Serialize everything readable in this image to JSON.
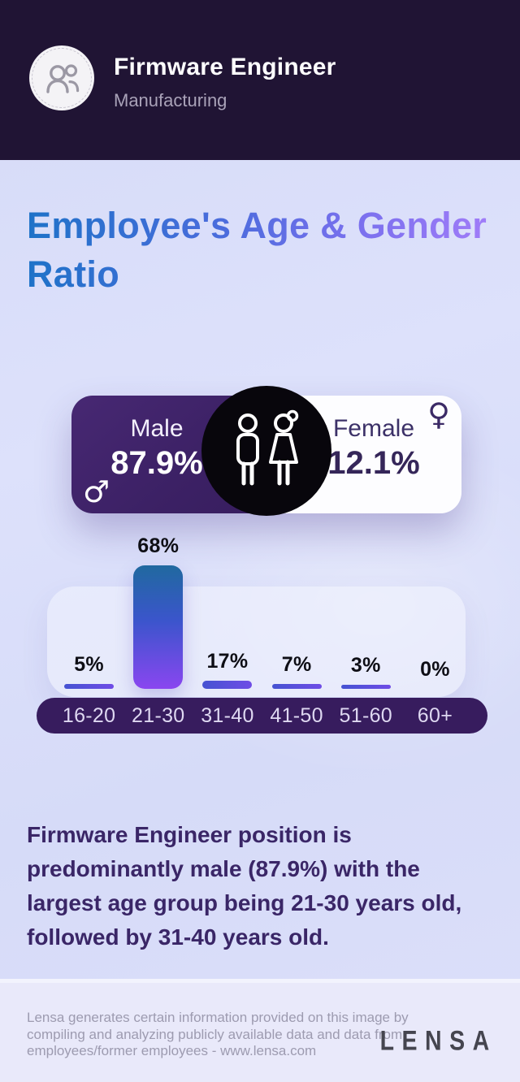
{
  "header": {
    "title": "Firmware Engineer",
    "subtitle": "Manufacturing",
    "avatar_icon": "people-icon"
  },
  "title_lines": [
    "Employee's Age & Gender",
    "Ratio"
  ],
  "chart_data": [
    {
      "type": "bar",
      "title": "Employee's Age & Gender Ratio",
      "categories": [
        "16-20",
        "21-30",
        "31-40",
        "41-50",
        "51-60",
        "60+"
      ],
      "values": [
        5,
        68,
        17,
        7,
        3,
        0
      ],
      "value_labels": [
        "5%",
        "68%",
        "17%",
        "7%",
        "3%",
        "0%"
      ],
      "unit": "%",
      "ylim": [
        0,
        100
      ],
      "grid": false,
      "legend": "none",
      "bar_gradient": [
        "#20699f",
        "#3b55cc",
        "#8a46f0"
      ]
    },
    {
      "type": "pie",
      "title": "Gender Ratio",
      "slices": [
        {
          "label": "Male",
          "value": 87.9,
          "text": "87.9%"
        },
        {
          "label": "Female",
          "value": 12.1,
          "text": "12.1%"
        }
      ],
      "unit": "%"
    }
  ],
  "gender_icons": {
    "male_symbol": "♂",
    "female_symbol": "♀"
  },
  "summary_lines": [
    "Firmware Engineer position is",
    "predominantly male (87.9%) with the",
    "largest age group being 21-30 years old,",
    "followed by 31-40 years old."
  ],
  "footer": {
    "disclaimer_lines": [
      "Lensa generates certain information provided on this image by",
      "compiling and analyzing publicly available data and data from",
      "employees/former employees - www.lensa.com"
    ],
    "logo": "LENSA"
  },
  "colors": {
    "header_bg": "#201434",
    "page_bg": "#d9ddf8",
    "heading_gradient_start": "#1e72c8",
    "heading_gradient_end": "#a07cf8",
    "male_panel": "#3e2167",
    "female_panel": "#fdfdff",
    "center_circle": "#08060c",
    "axis_pill": "#371c5e",
    "bar_blue": "#3b55cc",
    "bar_purple": "#8a46f0",
    "summary_text": "#3a2667",
    "footer_bg": "#e9e9fa",
    "footer_text": "#9d9bb0"
  }
}
